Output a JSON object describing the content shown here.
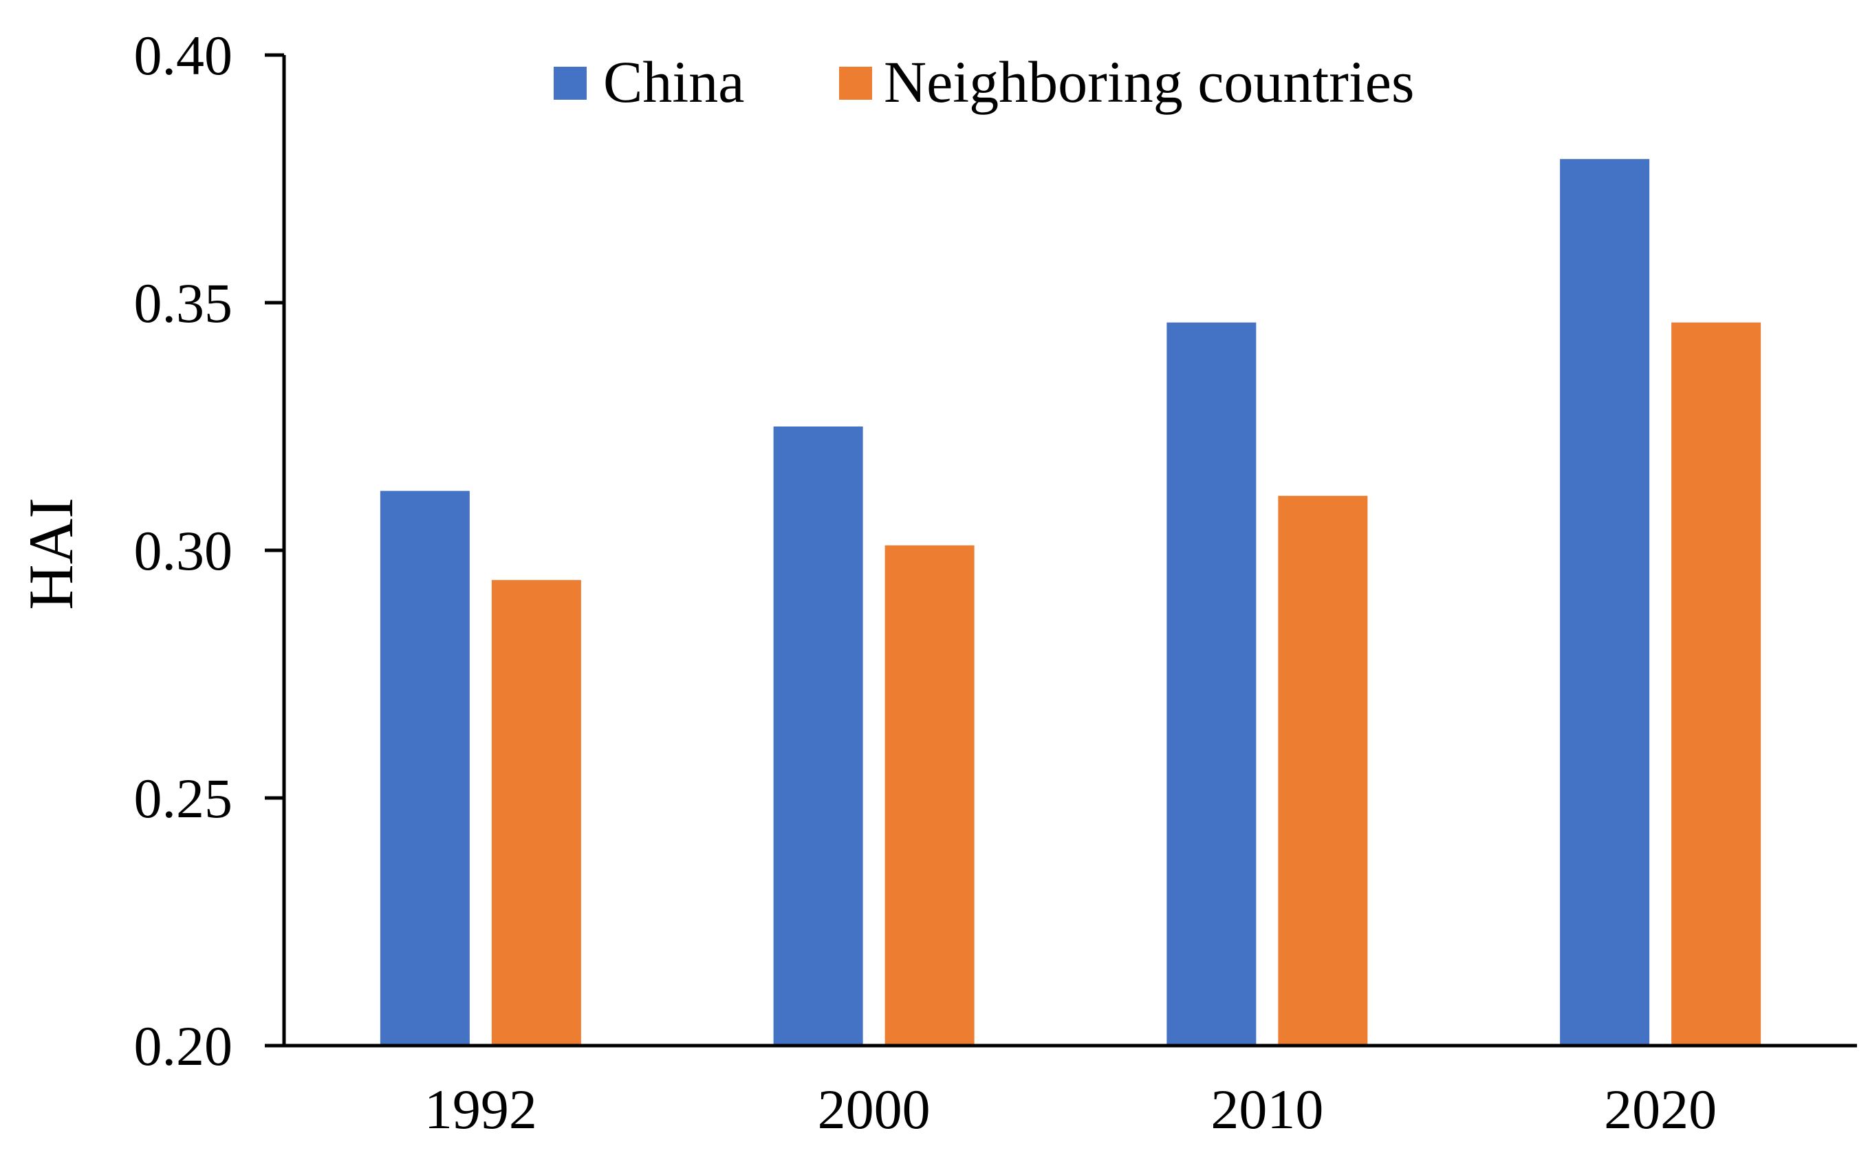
{
  "chart_data": {
    "type": "bar",
    "categories": [
      "1992",
      "2000",
      "2010",
      "2020"
    ],
    "series": [
      {
        "name": "China",
        "values": [
          0.312,
          0.325,
          0.346,
          0.379
        ],
        "color": "#4472C4"
      },
      {
        "name": "Neighboring countries",
        "values": [
          0.294,
          0.301,
          0.311,
          0.346
        ],
        "color": "#ED7D31"
      }
    ],
    "ylabel": "HAI",
    "xlabel": "",
    "ylim": [
      0.2,
      0.4
    ],
    "yticks": [
      "0.20",
      "0.25",
      "0.30",
      "0.35",
      "0.40"
    ],
    "grid": false,
    "legend": "top-center"
  }
}
